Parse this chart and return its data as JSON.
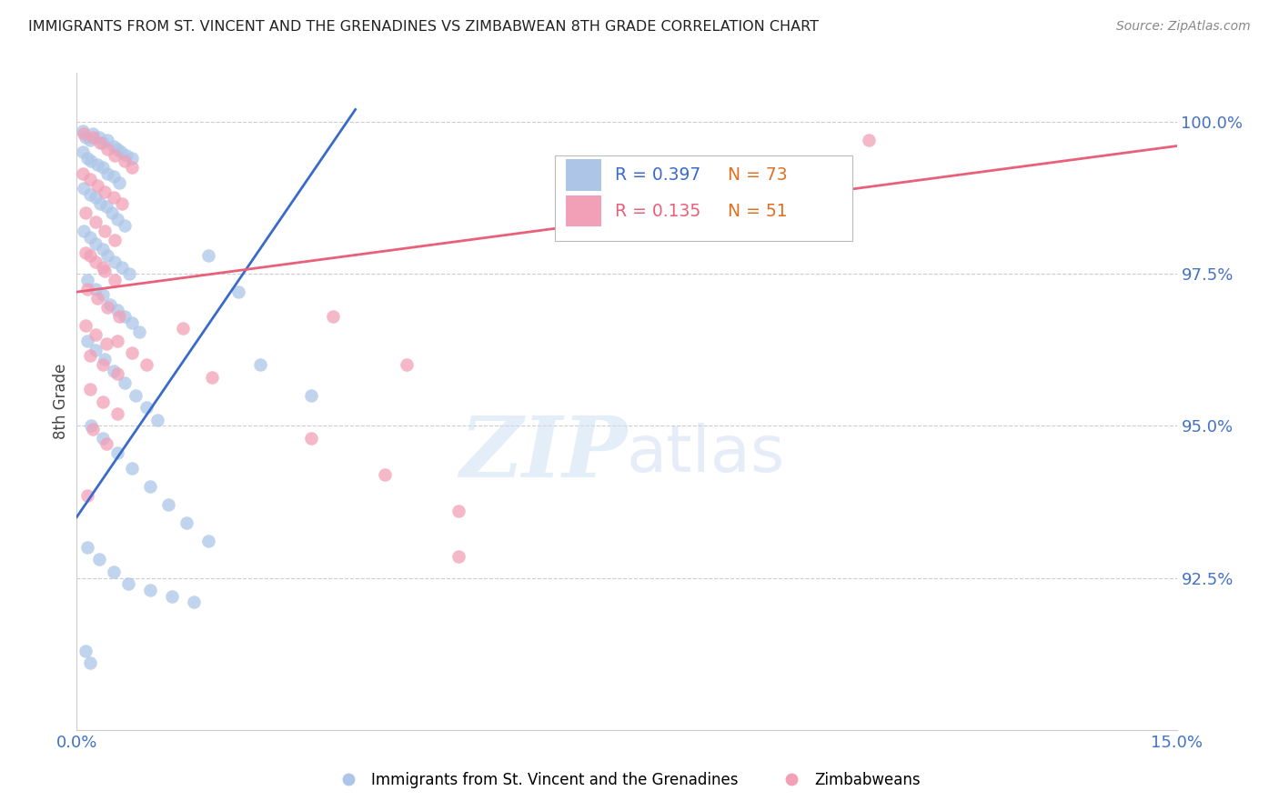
{
  "title": "IMMIGRANTS FROM ST. VINCENT AND THE GRENADINES VS ZIMBABWEAN 8TH GRADE CORRELATION CHART",
  "source": "Source: ZipAtlas.com",
  "ylabel": "8th Grade",
  "xmin": 0.0,
  "xmax": 15.0,
  "ymin": 90.0,
  "ymax": 100.8,
  "yticks": [
    92.5,
    95.0,
    97.5,
    100.0
  ],
  "ytick_labels": [
    "92.5%",
    "95.0%",
    "97.5%",
    "100.0%"
  ],
  "legend_blue_r": "R = 0.397",
  "legend_blue_n": "N = 73",
  "legend_pink_r": "R = 0.135",
  "legend_pink_n": "N = 51",
  "blue_color": "#adc6e8",
  "pink_color": "#f2a0b8",
  "blue_line_color": "#3a6bc9",
  "pink_line_color": "#e8607a",
  "blue_scatter": [
    [
      0.08,
      99.85
    ],
    [
      0.12,
      99.75
    ],
    [
      0.18,
      99.7
    ],
    [
      0.22,
      99.8
    ],
    [
      0.3,
      99.75
    ],
    [
      0.35,
      99.65
    ],
    [
      0.42,
      99.7
    ],
    [
      0.5,
      99.6
    ],
    [
      0.55,
      99.55
    ],
    [
      0.6,
      99.5
    ],
    [
      0.68,
      99.45
    ],
    [
      0.75,
      99.4
    ],
    [
      0.08,
      99.5
    ],
    [
      0.15,
      99.4
    ],
    [
      0.2,
      99.35
    ],
    [
      0.28,
      99.3
    ],
    [
      0.35,
      99.25
    ],
    [
      0.42,
      99.15
    ],
    [
      0.5,
      99.1
    ],
    [
      0.58,
      99.0
    ],
    [
      0.1,
      98.9
    ],
    [
      0.18,
      98.8
    ],
    [
      0.25,
      98.75
    ],
    [
      0.32,
      98.65
    ],
    [
      0.4,
      98.6
    ],
    [
      0.48,
      98.5
    ],
    [
      0.55,
      98.4
    ],
    [
      0.65,
      98.3
    ],
    [
      0.1,
      98.2
    ],
    [
      0.18,
      98.1
    ],
    [
      0.25,
      98.0
    ],
    [
      0.35,
      97.9
    ],
    [
      0.42,
      97.8
    ],
    [
      0.52,
      97.7
    ],
    [
      0.62,
      97.6
    ],
    [
      0.72,
      97.5
    ],
    [
      0.15,
      97.4
    ],
    [
      0.25,
      97.25
    ],
    [
      0.35,
      97.15
    ],
    [
      0.45,
      97.0
    ],
    [
      0.55,
      96.9
    ],
    [
      0.65,
      96.8
    ],
    [
      0.75,
      96.7
    ],
    [
      0.85,
      96.55
    ],
    [
      0.15,
      96.4
    ],
    [
      0.25,
      96.25
    ],
    [
      0.38,
      96.1
    ],
    [
      0.5,
      95.9
    ],
    [
      0.65,
      95.7
    ],
    [
      0.8,
      95.5
    ],
    [
      0.95,
      95.3
    ],
    [
      1.1,
      95.1
    ],
    [
      0.2,
      95.0
    ],
    [
      0.35,
      94.8
    ],
    [
      0.55,
      94.55
    ],
    [
      0.75,
      94.3
    ],
    [
      1.0,
      94.0
    ],
    [
      1.25,
      93.7
    ],
    [
      1.5,
      93.4
    ],
    [
      1.8,
      93.1
    ],
    [
      0.15,
      93.0
    ],
    [
      0.3,
      92.8
    ],
    [
      0.5,
      92.6
    ],
    [
      0.7,
      92.4
    ],
    [
      1.0,
      92.3
    ],
    [
      1.3,
      92.2
    ],
    [
      1.6,
      92.1
    ],
    [
      0.12,
      91.3
    ],
    [
      0.18,
      91.1
    ],
    [
      2.5,
      96.0
    ],
    [
      3.2,
      95.5
    ],
    [
      1.8,
      97.8
    ],
    [
      2.2,
      97.2
    ]
  ],
  "pink_scatter": [
    [
      0.1,
      99.8
    ],
    [
      0.22,
      99.75
    ],
    [
      0.32,
      99.65
    ],
    [
      0.42,
      99.55
    ],
    [
      0.52,
      99.45
    ],
    [
      0.65,
      99.35
    ],
    [
      0.75,
      99.25
    ],
    [
      0.08,
      99.15
    ],
    [
      0.18,
      99.05
    ],
    [
      0.28,
      98.95
    ],
    [
      0.38,
      98.85
    ],
    [
      0.5,
      98.75
    ],
    [
      0.62,
      98.65
    ],
    [
      0.12,
      98.5
    ],
    [
      0.25,
      98.35
    ],
    [
      0.38,
      98.2
    ],
    [
      0.52,
      98.05
    ],
    [
      0.12,
      97.85
    ],
    [
      0.25,
      97.7
    ],
    [
      0.38,
      97.55
    ],
    [
      0.52,
      97.4
    ],
    [
      0.15,
      97.25
    ],
    [
      0.28,
      97.1
    ],
    [
      0.42,
      96.95
    ],
    [
      0.58,
      96.8
    ],
    [
      0.12,
      96.65
    ],
    [
      0.25,
      96.5
    ],
    [
      0.4,
      96.35
    ],
    [
      0.18,
      96.15
    ],
    [
      0.35,
      96.0
    ],
    [
      0.55,
      95.85
    ],
    [
      0.18,
      95.6
    ],
    [
      0.35,
      95.4
    ],
    [
      0.55,
      95.2
    ],
    [
      3.5,
      96.8
    ],
    [
      4.5,
      96.0
    ],
    [
      3.2,
      94.8
    ],
    [
      4.2,
      94.2
    ],
    [
      5.2,
      93.6
    ],
    [
      0.22,
      94.95
    ],
    [
      0.4,
      94.7
    ],
    [
      0.15,
      93.85
    ],
    [
      5.2,
      92.85
    ],
    [
      10.8,
      99.7
    ],
    [
      0.18,
      97.8
    ],
    [
      0.35,
      97.6
    ],
    [
      1.45,
      96.6
    ],
    [
      1.85,
      95.8
    ],
    [
      0.55,
      96.4
    ],
    [
      0.75,
      96.2
    ],
    [
      0.95,
      96.0
    ]
  ],
  "blue_line": {
    "x0": 0.0,
    "y0": 93.5,
    "x1": 3.8,
    "y1": 100.2
  },
  "pink_line": {
    "x0": 0.0,
    "y0": 97.2,
    "x1": 15.0,
    "y1": 99.6
  },
  "watermark_zip": "ZIP",
  "watermark_atlas": "atlas",
  "title_color": "#222222",
  "axis_tick_color": "#4472c4",
  "grid_color": "#cccccc",
  "source_color": "#888888"
}
